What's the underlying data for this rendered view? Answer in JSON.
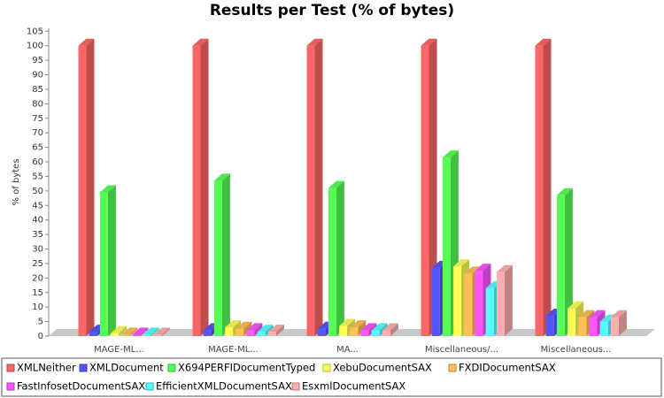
{
  "chart_data": {
    "type": "bar3d",
    "title": "Results per Test (% of bytes)",
    "y_label": "% of bytes",
    "categories": [
      "MAGE-ML...",
      "MAGE-ML...",
      "MA...",
      "Miscellaneous/...",
      "Miscellaneous..."
    ],
    "series": [
      {
        "name": "XMLNeither",
        "color": "#ff6666",
        "values": [
          100,
          100,
          100,
          100,
          100
        ]
      },
      {
        "name": "XMLDocument",
        "color": "#5555ff",
        "values": [
          1.5,
          2,
          2.5,
          23.5,
          7
        ]
      },
      {
        "name": "X694PERFIDocumentTyped",
        "color": "#55ff55",
        "values": [
          49.5,
          53.5,
          51,
          61.5,
          48.5
        ]
      },
      {
        "name": "XebuDocumentSAX",
        "color": "#ffff55",
        "values": [
          1,
          3,
          3.5,
          24,
          9.5
        ]
      },
      {
        "name": "FXDIDocumentSAX",
        "color": "#ffc055",
        "values": [
          0.5,
          2.5,
          3,
          21.5,
          6.5
        ]
      },
      {
        "name": "FastInfosetDocumentSAX",
        "color": "#ff55ff",
        "values": [
          0.5,
          2,
          2,
          22.5,
          6.5
        ]
      },
      {
        "name": "EfficientXMLDocumentSAX",
        "color": "#55ffff",
        "values": [
          0.5,
          1.5,
          2,
          16.5,
          5
        ]
      },
      {
        "name": "EsxmlDocumentSAX",
        "color": "#ffafaf",
        "values": [
          0.5,
          1.5,
          2,
          22,
          6.5
        ]
      }
    ],
    "ylim": [
      0,
      106
    ],
    "yticks": [
      0,
      5,
      10,
      15,
      20,
      25,
      30,
      35,
      40,
      45,
      50,
      55,
      60,
      65,
      70,
      75,
      80,
      85,
      90,
      95,
      100,
      105
    ],
    "legend": "bottom"
  }
}
